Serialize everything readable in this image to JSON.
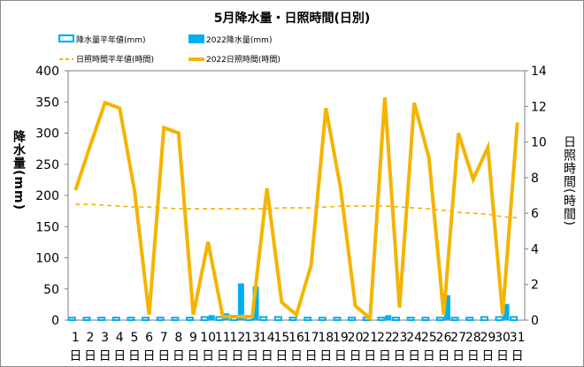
{
  "chart_data": {
    "type": "bar+line",
    "title": "5月降水量・日照時間(日別)",
    "categories": [
      "1",
      "2",
      "3",
      "4",
      "5",
      "6",
      "7",
      "8",
      "9",
      "10",
      "11",
      "12",
      "13",
      "14",
      "15",
      "16",
      "17",
      "18",
      "19",
      "20",
      "21",
      "22",
      "23",
      "24",
      "25",
      "26",
      "27",
      "28",
      "29",
      "30",
      "31"
    ],
    "x_sublabel": "日",
    "ylabel": "降水量(mm)",
    "y2label": "日照時間(時間)",
    "ylim": [
      0,
      400
    ],
    "y2lim": [
      0,
      14
    ],
    "yticks": [
      0,
      50,
      100,
      150,
      200,
      250,
      300,
      350,
      400
    ],
    "y2ticks": [
      0,
      2,
      4,
      6,
      8,
      10,
      12,
      14
    ],
    "grid": false,
    "legend_position": "top",
    "series": [
      {
        "name": "降水量平年値(mm)",
        "kind": "bar",
        "axis": "left",
        "style": "hollow",
        "color": "#00b0f0",
        "values": [
          4,
          4,
          4,
          4,
          4,
          4,
          4,
          4,
          4,
          5,
          5,
          5,
          5,
          5,
          5,
          4,
          4,
          4,
          4,
          4,
          4,
          4,
          4,
          4,
          4,
          4,
          4,
          4,
          5,
          5,
          5
        ]
      },
      {
        "name": "2022降水量(mm)",
        "kind": "bar",
        "axis": "left",
        "style": "solid",
        "color": "#00b0f0",
        "values": [
          0,
          0,
          0,
          0,
          0,
          0,
          0,
          0,
          0,
          8,
          11,
          59,
          54,
          0,
          0,
          0,
          0,
          0,
          0,
          0,
          0,
          8,
          0,
          0,
          0,
          40,
          0,
          0,
          0,
          26,
          0
        ]
      },
      {
        "name": "日照時間平年値(時間)",
        "kind": "line",
        "axis": "right",
        "style": "dashed",
        "color": "#f5b400",
        "values": [
          6.5,
          6.5,
          6.45,
          6.4,
          6.35,
          6.35,
          6.3,
          6.25,
          6.25,
          6.25,
          6.25,
          6.25,
          6.25,
          6.25,
          6.3,
          6.3,
          6.3,
          6.35,
          6.4,
          6.4,
          6.4,
          6.4,
          6.35,
          6.3,
          6.25,
          6.15,
          6.05,
          6.0,
          5.95,
          5.8,
          5.75
        ]
      },
      {
        "name": "2022日照時間(時間)",
        "kind": "line",
        "axis": "right",
        "style": "solid",
        "color": "#f5b400",
        "values": [
          7.3,
          9.8,
          12.2,
          11.9,
          7.3,
          0.3,
          10.8,
          10.5,
          0.3,
          4.4,
          0.2,
          0.2,
          0.2,
          7.4,
          1.0,
          0.3,
          3.1,
          11.9,
          7.4,
          0.8,
          0.1,
          12.5,
          0.7,
          12.2,
          9.1,
          0.3,
          10.5,
          7.9,
          9.7,
          0.3,
          11.1
        ]
      }
    ]
  }
}
